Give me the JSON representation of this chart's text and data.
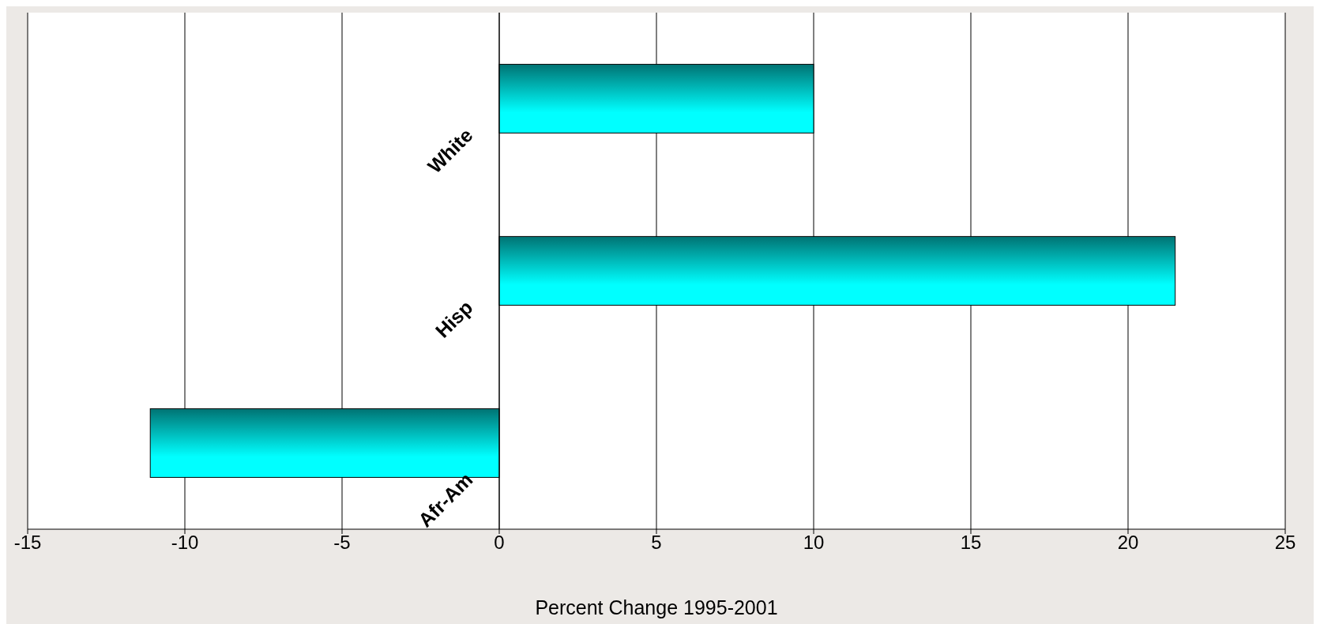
{
  "chart_data": {
    "type": "bar",
    "orientation": "horizontal",
    "xlabel": "Percent Change 1995-2001",
    "categories": [
      "White",
      "Hisp",
      "Afr-Am"
    ],
    "values": [
      10,
      21.5,
      -11.1
    ],
    "color": "#00ffff",
    "xlim": [
      -15,
      25
    ],
    "xticks": [
      -15,
      -10,
      -5,
      0,
      5,
      10,
      15,
      20,
      25
    ],
    "grid": "x",
    "legend": false
  }
}
